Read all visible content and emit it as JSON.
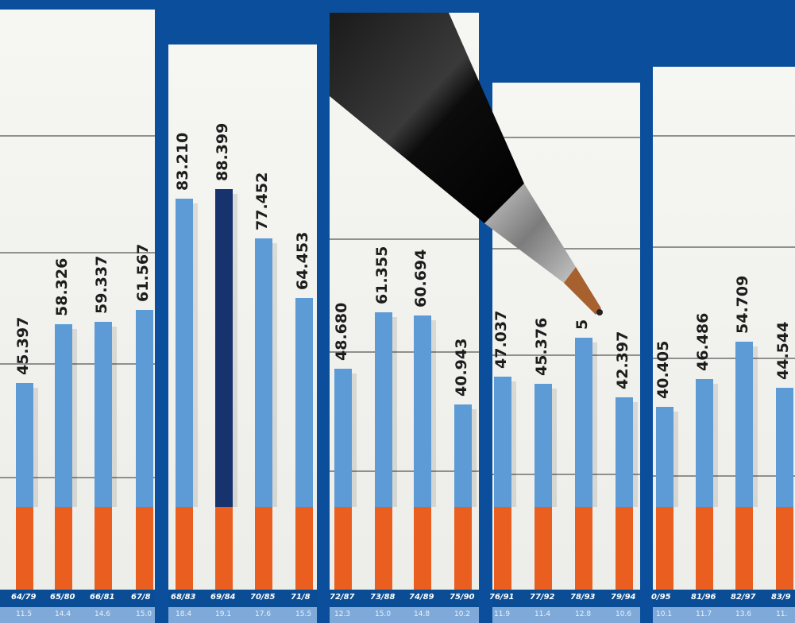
{
  "colors": {
    "background": "#0b4f9c",
    "bar_light": "#5d9bd6",
    "bar_dark": "#16336e",
    "bar_orange": "#ea5f1f"
  },
  "panels": [
    {
      "bars": [
        {
          "value": "45.397",
          "label": "64/79",
          "sub": "11.5"
        },
        {
          "value": "58.326",
          "label": "65/80",
          "sub": "14.4"
        },
        {
          "value": "59.337",
          "label": "66/81",
          "sub": "14.6"
        },
        {
          "value": "61.567",
          "label": "67/8",
          "sub": "15.0"
        }
      ]
    },
    {
      "bars": [
        {
          "value": "83.210",
          "label": "68/83",
          "sub": "18.4"
        },
        {
          "value": "88.399",
          "label": "69/84",
          "sub": "19.1"
        },
        {
          "value": "77.452",
          "label": "70/85",
          "sub": "17.6"
        },
        {
          "value": "64.453",
          "label": "71/8",
          "sub": "15.5"
        }
      ]
    },
    {
      "bars": [
        {
          "value": "48.680",
          "label": "72/87",
          "sub": "12.3"
        },
        {
          "value": "61.355",
          "label": "73/88",
          "sub": "15.0"
        },
        {
          "value": "60.694",
          "label": "74/89",
          "sub": "14.8"
        },
        {
          "value": "40.943",
          "label": "75/90",
          "sub": "10.2"
        }
      ]
    },
    {
      "bars": [
        {
          "value": "47.037",
          "label": "76/91",
          "sub": "11.9"
        },
        {
          "value": "45.376",
          "label": "77/92",
          "sub": "11.4"
        },
        {
          "value": "5",
          "label": "78/93",
          "sub": "12.8"
        },
        {
          "value": "42.397",
          "label": "79/94",
          "sub": "10.6"
        }
      ]
    },
    {
      "bars": [
        {
          "value": "40.405",
          "label": "0/95",
          "sub": "10.1"
        },
        {
          "value": "46.486",
          "label": "81/96",
          "sub": "11.7"
        },
        {
          "value": "54.709",
          "label": "82/97",
          "sub": "13.6"
        },
        {
          "value": "44.544",
          "label": "83/9",
          "sub": "11."
        }
      ]
    }
  ]
}
